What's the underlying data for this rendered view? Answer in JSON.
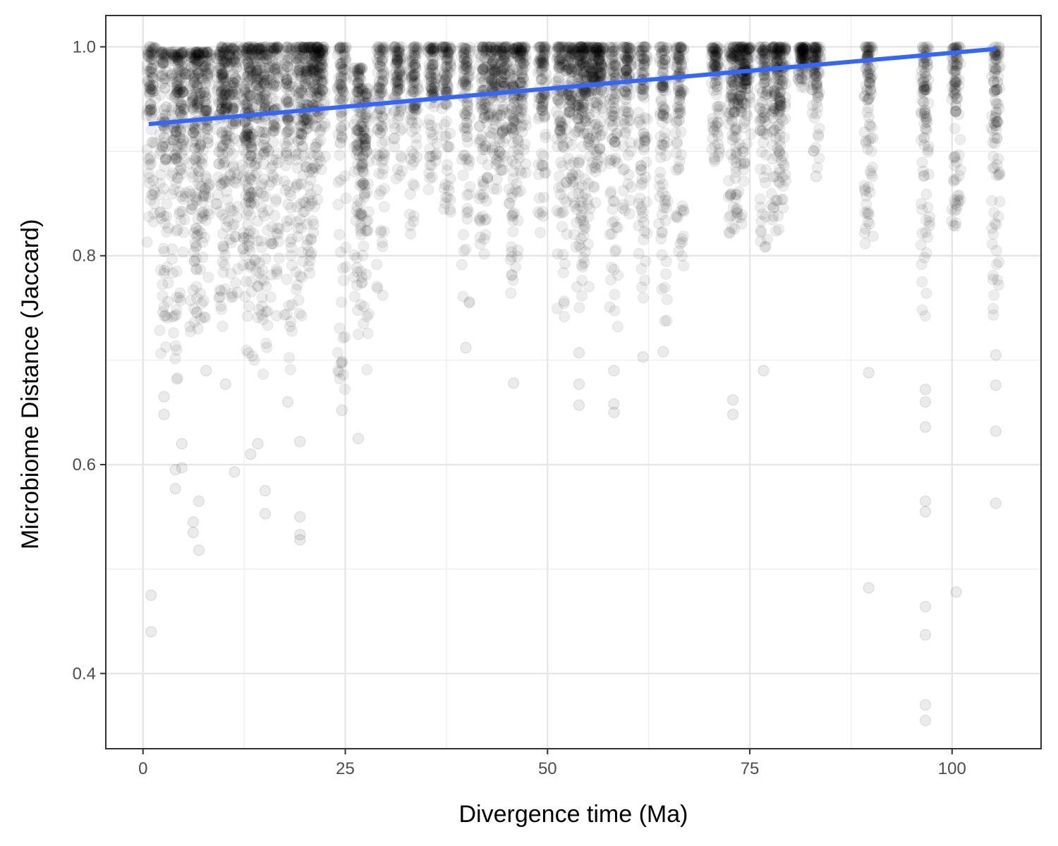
{
  "chart_data": {
    "type": "scatter",
    "title": "",
    "xlabel": "Divergence time (Ma)",
    "ylabel": "Microbiome Distance (Jaccard)",
    "xlim": [
      -4.6,
      111.0
    ],
    "ylim": [
      0.328,
      1.03
    ],
    "x_ticks": [
      0,
      25,
      50,
      75,
      100
    ],
    "x_tick_labels": [
      "0",
      "25",
      "50",
      "75",
      "100"
    ],
    "y_ticks": [
      0.4,
      0.6,
      0.8,
      1.0
    ],
    "y_tick_labels": [
      "0.4",
      "0.6",
      "0.8",
      "1.0"
    ],
    "grid": true,
    "legend": "none",
    "point_color": "#000000",
    "trend_color": "#3366FF",
    "trend_line": {
      "x": [
        0.7,
        105.4
      ],
      "y": [
        0.926,
        0.998
      ]
    },
    "columns": [
      {
        "x": 1.0,
        "min": 0.81,
        "max": 1.0,
        "outliers": [
          0.475,
          0.44
        ]
      },
      {
        "x": 2.6,
        "min": 0.7,
        "max": 0.995,
        "outliers": [
          0.665,
          0.648
        ]
      },
      {
        "x": 4.0,
        "min": 0.68,
        "max": 0.995,
        "outliers": [
          0.595,
          0.577
        ]
      },
      {
        "x": 4.8,
        "min": 0.72,
        "max": 0.995,
        "outliers": [
          0.62,
          0.597
        ]
      },
      {
        "x": 6.2,
        "min": 0.7,
        "max": 0.995,
        "outliers": [
          0.545,
          0.535
        ]
      },
      {
        "x": 6.9,
        "min": 0.72,
        "max": 0.995,
        "outliers": [
          0.565,
          0.518
        ]
      },
      {
        "x": 7.8,
        "min": 0.74,
        "max": 0.995,
        "outliers": [
          0.69
        ]
      },
      {
        "x": 9.6,
        "min": 0.72,
        "max": 0.995,
        "outliers": []
      },
      {
        "x": 10.2,
        "min": 0.8,
        "max": 1.0,
        "outliers": [
          0.677
        ]
      },
      {
        "x": 11.3,
        "min": 0.76,
        "max": 1.0,
        "outliers": [
          0.593
        ]
      },
      {
        "x": 12.8,
        "min": 0.72,
        "max": 1.0,
        "outliers": []
      },
      {
        "x": 13.3,
        "min": 0.7,
        "max": 1.0,
        "outliers": [
          0.61
        ]
      },
      {
        "x": 14.2,
        "min": 0.74,
        "max": 1.0,
        "outliers": [
          0.62
        ]
      },
      {
        "x": 15.1,
        "min": 0.68,
        "max": 1.0,
        "outliers": [
          0.575,
          0.553
        ]
      },
      {
        "x": 16.3,
        "min": 0.74,
        "max": 1.0,
        "outliers": []
      },
      {
        "x": 17.9,
        "min": 0.69,
        "max": 1.0,
        "outliers": [
          0.66
        ]
      },
      {
        "x": 19.4,
        "min": 0.74,
        "max": 1.0,
        "outliers": [
          0.622,
          0.55,
          0.533,
          0.528
        ]
      },
      {
        "x": 20.3,
        "min": 0.78,
        "max": 1.0,
        "outliers": []
      },
      {
        "x": 21.2,
        "min": 0.82,
        "max": 1.0,
        "outliers": []
      },
      {
        "x": 22.0,
        "min": 0.88,
        "max": 1.0,
        "outliers": []
      },
      {
        "x": 24.6,
        "min": 0.67,
        "max": 1.0,
        "outliers": [
          0.652
        ]
      },
      {
        "x": 26.6,
        "min": 0.72,
        "max": 0.98,
        "outliers": [
          0.625
        ]
      },
      {
        "x": 27.4,
        "min": 0.69,
        "max": 0.96,
        "outliers": []
      },
      {
        "x": 29.4,
        "min": 0.76,
        "max": 1.0,
        "outliers": []
      },
      {
        "x": 31.5,
        "min": 0.87,
        "max": 1.0,
        "outliers": []
      },
      {
        "x": 33.5,
        "min": 0.82,
        "max": 1.0,
        "outliers": []
      },
      {
        "x": 35.8,
        "min": 0.86,
        "max": 1.0,
        "outliers": []
      },
      {
        "x": 37.5,
        "min": 0.84,
        "max": 1.0,
        "outliers": []
      },
      {
        "x": 39.9,
        "min": 0.75,
        "max": 1.0,
        "outliers": [
          0.712
        ]
      },
      {
        "x": 42.1,
        "min": 0.8,
        "max": 1.0,
        "outliers": []
      },
      {
        "x": 43.3,
        "min": 0.86,
        "max": 1.0,
        "outliers": []
      },
      {
        "x": 44.5,
        "min": 0.88,
        "max": 1.0,
        "outliers": []
      },
      {
        "x": 45.8,
        "min": 0.76,
        "max": 1.0,
        "outliers": [
          0.678
        ]
      },
      {
        "x": 46.8,
        "min": 0.86,
        "max": 1.0,
        "outliers": []
      },
      {
        "x": 49.3,
        "min": 0.82,
        "max": 1.0,
        "outliers": []
      },
      {
        "x": 51.6,
        "min": 0.74,
        "max": 1.0,
        "outliers": []
      },
      {
        "x": 52.8,
        "min": 0.82,
        "max": 1.0,
        "outliers": []
      },
      {
        "x": 53.9,
        "min": 0.75,
        "max": 1.0,
        "outliers": [
          0.707,
          0.677,
          0.657
        ]
      },
      {
        "x": 54.6,
        "min": 0.76,
        "max": 1.0,
        "outliers": []
      },
      {
        "x": 55.6,
        "min": 0.84,
        "max": 1.0,
        "outliers": []
      },
      {
        "x": 56.5,
        "min": 0.88,
        "max": 1.0,
        "outliers": []
      },
      {
        "x": 58.2,
        "min": 0.73,
        "max": 1.0,
        "outliers": [
          0.69,
          0.658,
          0.65
        ]
      },
      {
        "x": 59.8,
        "min": 0.84,
        "max": 1.0,
        "outliers": []
      },
      {
        "x": 61.8,
        "min": 0.74,
        "max": 1.0,
        "outliers": [
          0.703
        ]
      },
      {
        "x": 64.3,
        "min": 0.72,
        "max": 1.0,
        "outliers": [
          0.708
        ]
      },
      {
        "x": 66.3,
        "min": 0.79,
        "max": 1.0,
        "outliers": []
      },
      {
        "x": 70.8,
        "min": 0.89,
        "max": 1.0,
        "outliers": []
      },
      {
        "x": 72.9,
        "min": 0.82,
        "max": 1.0,
        "outliers": [
          0.662,
          0.648
        ]
      },
      {
        "x": 73.8,
        "min": 0.83,
        "max": 1.0,
        "outliers": []
      },
      {
        "x": 74.6,
        "min": 0.88,
        "max": 1.0,
        "outliers": []
      },
      {
        "x": 76.7,
        "min": 0.8,
        "max": 1.0,
        "outliers": [
          0.69
        ]
      },
      {
        "x": 78.2,
        "min": 0.82,
        "max": 1.0,
        "outliers": []
      },
      {
        "x": 78.9,
        "min": 0.82,
        "max": 1.0,
        "outliers": []
      },
      {
        "x": 81.5,
        "min": 0.96,
        "max": 1.0,
        "outliers": []
      },
      {
        "x": 83.2,
        "min": 0.88,
        "max": 1.0,
        "outliers": [
          0.876
        ]
      },
      {
        "x": 89.7,
        "min": 0.8,
        "max": 1.0,
        "outliers": [
          0.688,
          0.482
        ]
      },
      {
        "x": 96.7,
        "min": 0.74,
        "max": 1.0,
        "outliers": [
          0.672,
          0.66,
          0.636,
          0.565,
          0.555,
          0.464,
          0.437,
          0.37,
          0.355
        ]
      },
      {
        "x": 100.5,
        "min": 0.82,
        "max": 1.0,
        "outliers": [
          0.478
        ]
      },
      {
        "x": 105.4,
        "min": 0.73,
        "max": 1.0,
        "outliers": [
          0.705,
          0.676,
          0.632,
          0.563
        ]
      }
    ]
  }
}
